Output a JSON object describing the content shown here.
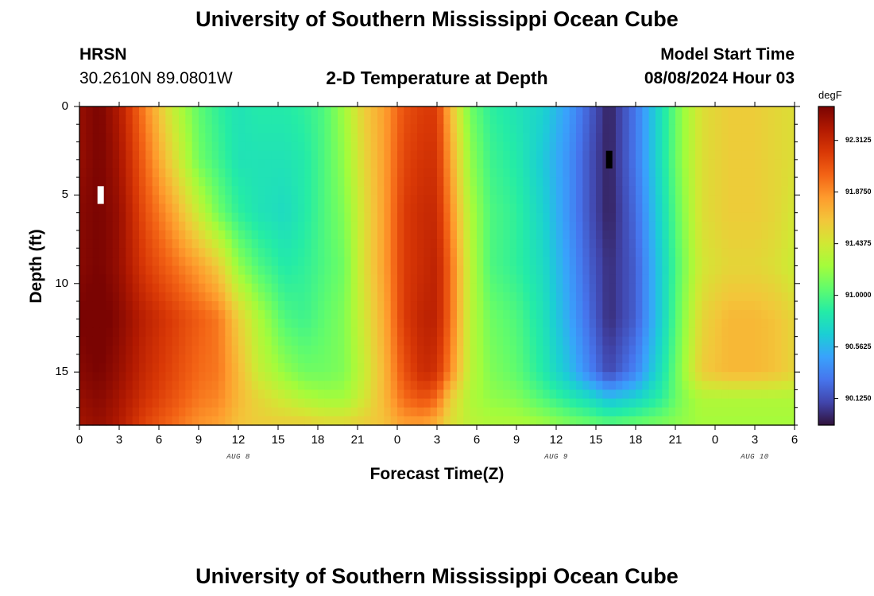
{
  "header": {
    "title": "University of Southern Mississippi Ocean Cube",
    "station": "HRSN",
    "coords": "30.2610N  89.0801W",
    "subtitle": "2-D Temperature at Depth",
    "start_label": "Model Start Time",
    "start_value": "08/08/2024 Hour 03"
  },
  "footer": {
    "title": "University of Southern Mississippi Ocean Cube"
  },
  "chart_data": {
    "type": "heatmap",
    "title": "2-D Temperature at Depth",
    "xlabel": "Forecast Time(Z)",
    "ylabel": "Depth (ft)",
    "xlim": [
      0,
      54
    ],
    "ylim": [
      0,
      18
    ],
    "x_ticks": [
      0,
      3,
      6,
      9,
      12,
      15,
      18,
      21,
      24,
      27,
      30,
      33,
      36,
      39,
      42,
      45,
      48,
      51,
      54
    ],
    "x_tick_labels": [
      "0",
      "3",
      "6",
      "9",
      "12",
      "15",
      "18",
      "21",
      "0",
      "3",
      "6",
      "9",
      "12",
      "15",
      "18",
      "21",
      "0",
      "3",
      "6"
    ],
    "y_ticks": [
      0,
      5,
      10,
      15
    ],
    "y_tick_labels": [
      "0",
      "5",
      "10",
      "15"
    ],
    "date_labels": [
      {
        "text": "AUG 8",
        "x": 12
      },
      {
        "text": "AUG 9",
        "x": 36
      },
      {
        "text": "AUG 10",
        "x": 51
      }
    ],
    "colorbar": {
      "unit": "degF",
      "min": 89.9,
      "max": 92.6,
      "ticks": [
        90.125,
        90.5625,
        91.0,
        91.4375,
        91.875,
        92.3125
      ],
      "tick_labels": [
        "90.1250",
        "90.5625",
        "91.0000",
        "91.4375",
        "91.8750",
        "92.3125"
      ],
      "stops": [
        "#30123b",
        "#4145ab",
        "#4675ed",
        "#39a2fc",
        "#1bcfd4",
        "#24eca6",
        "#61fc6c",
        "#a4fc3b",
        "#d1e834",
        "#f3c63a",
        "#fe9b2d",
        "#f36315",
        "#d93806",
        "#b11901",
        "#7a0402"
      ]
    },
    "markers": [
      {
        "x": 1.6,
        "depth_min": 4.5,
        "depth_max": 5.5,
        "color": "#ffffff"
      },
      {
        "x": 40.0,
        "depth_min": 2.5,
        "depth_max": 3.5,
        "color": "#000000"
      }
    ],
    "x_time": [
      0,
      1.5,
      3,
      5,
      7,
      9,
      10.5,
      12,
      13.5,
      15.5,
      17,
      18.5,
      20,
      21.5,
      23,
      24.5,
      26,
      27,
      28,
      29.5,
      31,
      33,
      35,
      37,
      38.5,
      40,
      42,
      44,
      45.5,
      47,
      49,
      51,
      52.5,
      54
    ],
    "depths_ft": [
      0,
      3,
      6,
      9,
      12,
      15,
      16.5,
      18
    ],
    "values_degF": [
      [
        92.5,
        92.6,
        92.4,
        91.9,
        91.4,
        91.05,
        90.9,
        90.8,
        90.85,
        90.85,
        90.9,
        91.0,
        91.25,
        91.6,
        91.8,
        92.1,
        92.2,
        92.2,
        91.7,
        91.1,
        90.9,
        90.8,
        90.7,
        90.45,
        90.2,
        89.95,
        90.3,
        90.8,
        91.2,
        91.5,
        91.6,
        91.6,
        91.55,
        91.5
      ],
      [
        92.5,
        92.6,
        92.45,
        92.0,
        91.55,
        91.1,
        90.95,
        90.8,
        90.8,
        90.8,
        90.85,
        91.0,
        91.2,
        91.55,
        91.8,
        92.15,
        92.25,
        92.25,
        91.8,
        91.2,
        90.95,
        90.85,
        90.65,
        90.4,
        90.15,
        89.95,
        90.3,
        90.8,
        91.2,
        91.5,
        91.6,
        91.6,
        91.55,
        91.5
      ],
      [
        92.55,
        92.6,
        92.5,
        92.1,
        91.8,
        91.4,
        91.1,
        90.9,
        90.8,
        90.75,
        90.85,
        91.0,
        91.15,
        91.5,
        91.8,
        92.2,
        92.3,
        92.3,
        91.9,
        91.3,
        91.0,
        90.9,
        90.7,
        90.4,
        90.15,
        89.95,
        90.25,
        90.75,
        91.15,
        91.5,
        91.6,
        91.6,
        91.55,
        91.45
      ],
      [
        92.55,
        92.6,
        92.5,
        92.2,
        92.0,
        91.8,
        91.6,
        91.2,
        91.0,
        90.85,
        90.9,
        91.0,
        91.1,
        91.5,
        91.8,
        92.2,
        92.3,
        92.35,
        92.0,
        91.35,
        91.0,
        90.9,
        90.75,
        90.45,
        90.2,
        90.0,
        90.2,
        90.7,
        91.1,
        91.45,
        91.55,
        91.55,
        91.5,
        91.4
      ],
      [
        92.6,
        92.65,
        92.55,
        92.35,
        92.2,
        92.05,
        91.95,
        91.6,
        91.3,
        91.0,
        90.95,
        91.05,
        91.15,
        91.45,
        91.75,
        92.2,
        92.35,
        92.35,
        92.0,
        91.35,
        91.1,
        91.0,
        90.8,
        90.5,
        90.25,
        90.0,
        90.2,
        90.7,
        91.15,
        91.55,
        91.7,
        91.7,
        91.65,
        91.55
      ],
      [
        92.55,
        92.6,
        92.5,
        92.3,
        92.15,
        92.0,
        91.95,
        91.7,
        91.4,
        91.2,
        91.1,
        91.1,
        91.15,
        91.4,
        91.7,
        92.1,
        92.3,
        92.25,
        91.9,
        91.35,
        91.15,
        91.05,
        90.85,
        90.6,
        90.35,
        90.1,
        90.35,
        90.8,
        91.2,
        91.6,
        91.7,
        91.7,
        91.65,
        91.55
      ],
      [
        92.5,
        92.55,
        92.45,
        92.25,
        92.1,
        91.95,
        91.9,
        91.7,
        91.55,
        91.4,
        91.3,
        91.25,
        91.25,
        91.45,
        91.7,
        92.0,
        92.1,
        92.0,
        91.6,
        91.3,
        91.2,
        91.15,
        91.0,
        90.85,
        90.75,
        90.6,
        90.7,
        90.9,
        91.15,
        91.3,
        91.3,
        91.3,
        91.3,
        91.3
      ],
      [
        92.45,
        92.5,
        92.4,
        92.15,
        92.0,
        91.85,
        91.8,
        91.65,
        91.6,
        91.6,
        91.6,
        91.55,
        91.55,
        91.6,
        91.65,
        91.8,
        91.8,
        91.7,
        91.5,
        91.35,
        91.3,
        91.3,
        91.25,
        91.15,
        91.1,
        91.05,
        91.1,
        91.15,
        91.2,
        91.25,
        91.25,
        91.25,
        91.25,
        91.25
      ]
    ]
  }
}
